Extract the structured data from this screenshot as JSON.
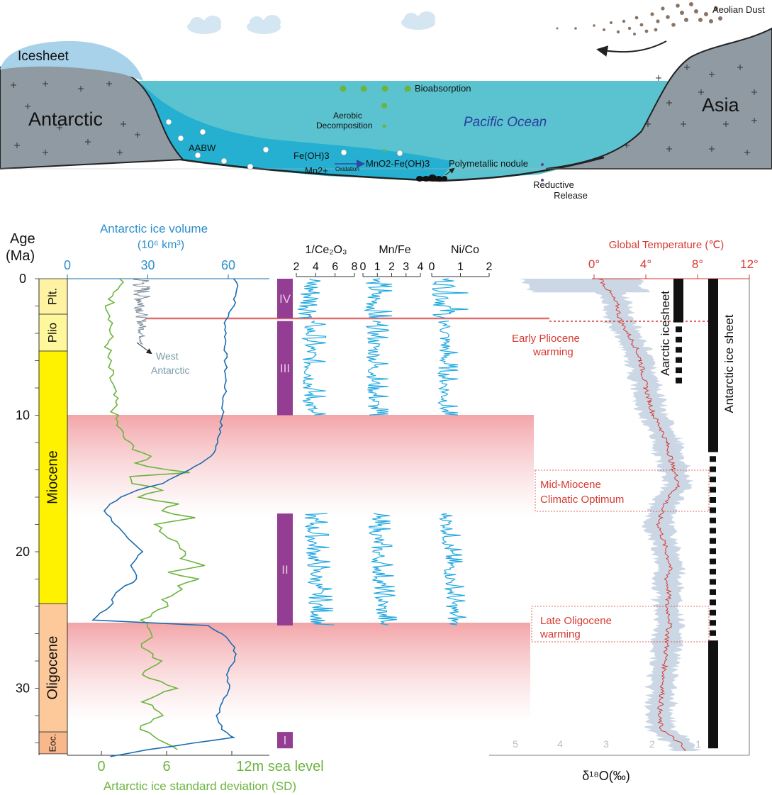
{
  "colors": {
    "ocean": "#5bc3d0",
    "ocean_deep": "#25b3d4",
    "land": "#8f9aa3",
    "icesheet": "#a8d2ea",
    "cloud": "#d4e6f2",
    "green": "#6cb43f",
    "blue_curve": "#1a6db0",
    "cyan": "#20a8e0",
    "purple": "#933e92",
    "red": "#d73a31",
    "grey_band": "#c5d3e2",
    "miocene": "#fff200",
    "oligocene": "#fdc89a",
    "pliocene": "#fff79c",
    "pleistocene": "#fff3a3",
    "eocene": "#f9b88b"
  },
  "schematic": {
    "icesheet_label": "Icesheet",
    "antarctic_label": "Antarctic",
    "asia_label": "Asia",
    "ocean_label": "Pacific Ocean",
    "aabw_label": "AABW",
    "aeolian_label": "Aeolian Dust",
    "bioabsorption_label": "Bioabsorption",
    "aerobic_label_1": "Aerobic",
    "aerobic_label_2": "Decomposition",
    "feoh_label": "Fe(OH)3",
    "mn_label": "Mn2+",
    "oxidation_label": "Oxidation",
    "mno2_label": "MnO2-Fe(OH)3",
    "nodule_label": "Polymetallic nodule",
    "reductive_label_1": "Reductive",
    "reductive_label_2": "Release"
  },
  "axes": {
    "age_label_1": "Age",
    "age_label_2": "(Ma)",
    "age_ticks": [
      "0",
      "10",
      "20",
      "30"
    ],
    "ice_volume_label_1": "Antarctic ice volume",
    "ice_volume_label_2": "(10⁶ km³)",
    "ice_volume_ticks": [
      "0",
      "30",
      "60"
    ],
    "sd_ticks": [
      "0",
      "6",
      "12m sea level"
    ],
    "sd_label": "Artarctic ice standard deviation (SD)",
    "ce_label": "1/Ce₂O₃",
    "ce_ticks": [
      "2",
      "4",
      "6",
      "8"
    ],
    "mnfe_label": "Mn/Fe",
    "mnfe_ticks": [
      "0",
      "1",
      "2",
      "3",
      "4"
    ],
    "nico_label": "Ni/Co",
    "nico_ticks": [
      "0",
      "1",
      "2"
    ],
    "temp_label": "Global Temperature (℃)",
    "temp_ticks": [
      "0°",
      "4°",
      "8°",
      "12°"
    ],
    "d18o_label": "δ¹⁸O(‰)",
    "d18o_ticks": [
      "5",
      "4",
      "3",
      "2",
      "1"
    ]
  },
  "epochs": [
    {
      "name": "Plt.",
      "from": 0,
      "to": 2.6
    },
    {
      "name": "Plio",
      "from": 2.6,
      "to": 5.3
    },
    {
      "name": "Miocene",
      "from": 5.3,
      "to": 23.8
    },
    {
      "name": "Oligocene",
      "from": 23.8,
      "to": 33.2
    },
    {
      "name": "Eoc.",
      "from": 33.2,
      "to": 34.8
    }
  ],
  "units": [
    {
      "name": "IV",
      "from": 0,
      "to": 2.9
    },
    {
      "name": "III",
      "from": 3.1,
      "to": 10
    },
    {
      "name": "II",
      "from": 17.2,
      "to": 25.4
    },
    {
      "name": "I",
      "from": 33.2,
      "to": 34.4
    }
  ],
  "events": {
    "pliocene_1": "Early Pliocene",
    "pliocene_2": "warming",
    "mmco_1": "Mid-Miocene",
    "mmco_2": "Climatic Optimum",
    "oligo_1": "Late Oligocene",
    "oligo_2": "warming"
  },
  "west_antarctic_1": "West",
  "west_antarctic_2": "Antarctic",
  "arctic_icesheet_label": "Aarctic icesheet",
  "antarctic_icesheet_label": "Antarctic  ice sheet",
  "chart_data": {
    "type": "line",
    "x_unit": "Age (Ma)",
    "ice_volume": {
      "age": [
        0,
        0.5,
        1,
        2,
        3,
        4,
        5,
        6,
        7,
        8,
        9,
        10,
        11,
        12,
        13,
        14,
        14.5,
        15,
        15.5,
        16,
        16.5,
        17,
        18,
        19,
        20,
        21,
        22,
        23,
        24,
        24.5,
        25,
        25.2,
        25.4,
        26,
        27,
        28,
        29,
        30,
        31,
        32,
        33,
        33.6,
        34,
        34.5,
        35
      ],
      "value": [
        62,
        64,
        63,
        62,
        59,
        59,
        59,
        59,
        59,
        59,
        58,
        58,
        57,
        56,
        54,
        46,
        40,
        35,
        26,
        20,
        16,
        14,
        18,
        22,
        28,
        24,
        26,
        18,
        16,
        12,
        10,
        30,
        52,
        58,
        62,
        63,
        59,
        61,
        58,
        56,
        58,
        62,
        48,
        30,
        16
      ]
    },
    "sd": {
      "age": [
        0,
        1,
        2,
        3,
        4,
        5,
        6,
        7,
        8,
        9,
        10,
        11,
        12,
        12.5,
        13,
        13.5,
        14,
        14.2,
        14.5,
        15,
        15.5,
        16,
        16.5,
        17,
        17.5,
        18,
        19,
        20,
        20.5,
        21,
        21.5,
        22,
        22.5,
        23,
        23.5,
        24,
        24.5,
        25,
        26,
        27,
        28,
        29,
        30,
        31,
        32,
        33,
        34,
        34.5
      ],
      "value": [
        1.8,
        1.3,
        0.7,
        1.0,
        0.8,
        0.6,
        0.6,
        0.8,
        1.0,
        1.2,
        1.2,
        1.6,
        2.4,
        3.2,
        4.6,
        3.0,
        6.0,
        8.4,
        2.6,
        3.2,
        5.6,
        3.5,
        7.0,
        5.4,
        8.3,
        5.0,
        6.2,
        8.0,
        7.5,
        9.5,
        6.5,
        8.8,
        7.0,
        7.2,
        5.8,
        6.5,
        4.5,
        4.0,
        4.8,
        3.6,
        5.2,
        4.0,
        6.6,
        4.0,
        5.5,
        3.4,
        6.0,
        7.0
      ]
    },
    "temperature": {
      "age": [
        0,
        1,
        2,
        3,
        4,
        5,
        6,
        7,
        8,
        9,
        10,
        11,
        12,
        13,
        14,
        15,
        16,
        17,
        18,
        19,
        20,
        21,
        22,
        23,
        24,
        25,
        26,
        27,
        28,
        29,
        30,
        31,
        32,
        33,
        34,
        34.6
      ],
      "value": [
        0.5,
        1.2,
        1.8,
        2.0,
        2.6,
        3.2,
        3.6,
        3.8,
        4.0,
        4.3,
        4.6,
        5.2,
        5.6,
        5.9,
        6.1,
        6.6,
        5.8,
        5.2,
        5.0,
        5.3,
        5.6,
        5.9,
        5.6,
        5.8,
        5.6,
        5.9,
        5.7,
        5.6,
        5.5,
        5.4,
        5.3,
        5.2,
        5.0,
        5.2,
        6.6,
        7.0
      ]
    },
    "antarctic_ice_sheet": {
      "solid": [
        [
          0,
          12.7
        ],
        [
          26.5,
          34.4
        ]
      ],
      "dashed": [
        12.7,
        26.5
      ]
    },
    "arctic_ice_sheet": {
      "solid": [
        0,
        3.2
      ],
      "dashed": [
        3.2,
        8.0
      ]
    }
  }
}
